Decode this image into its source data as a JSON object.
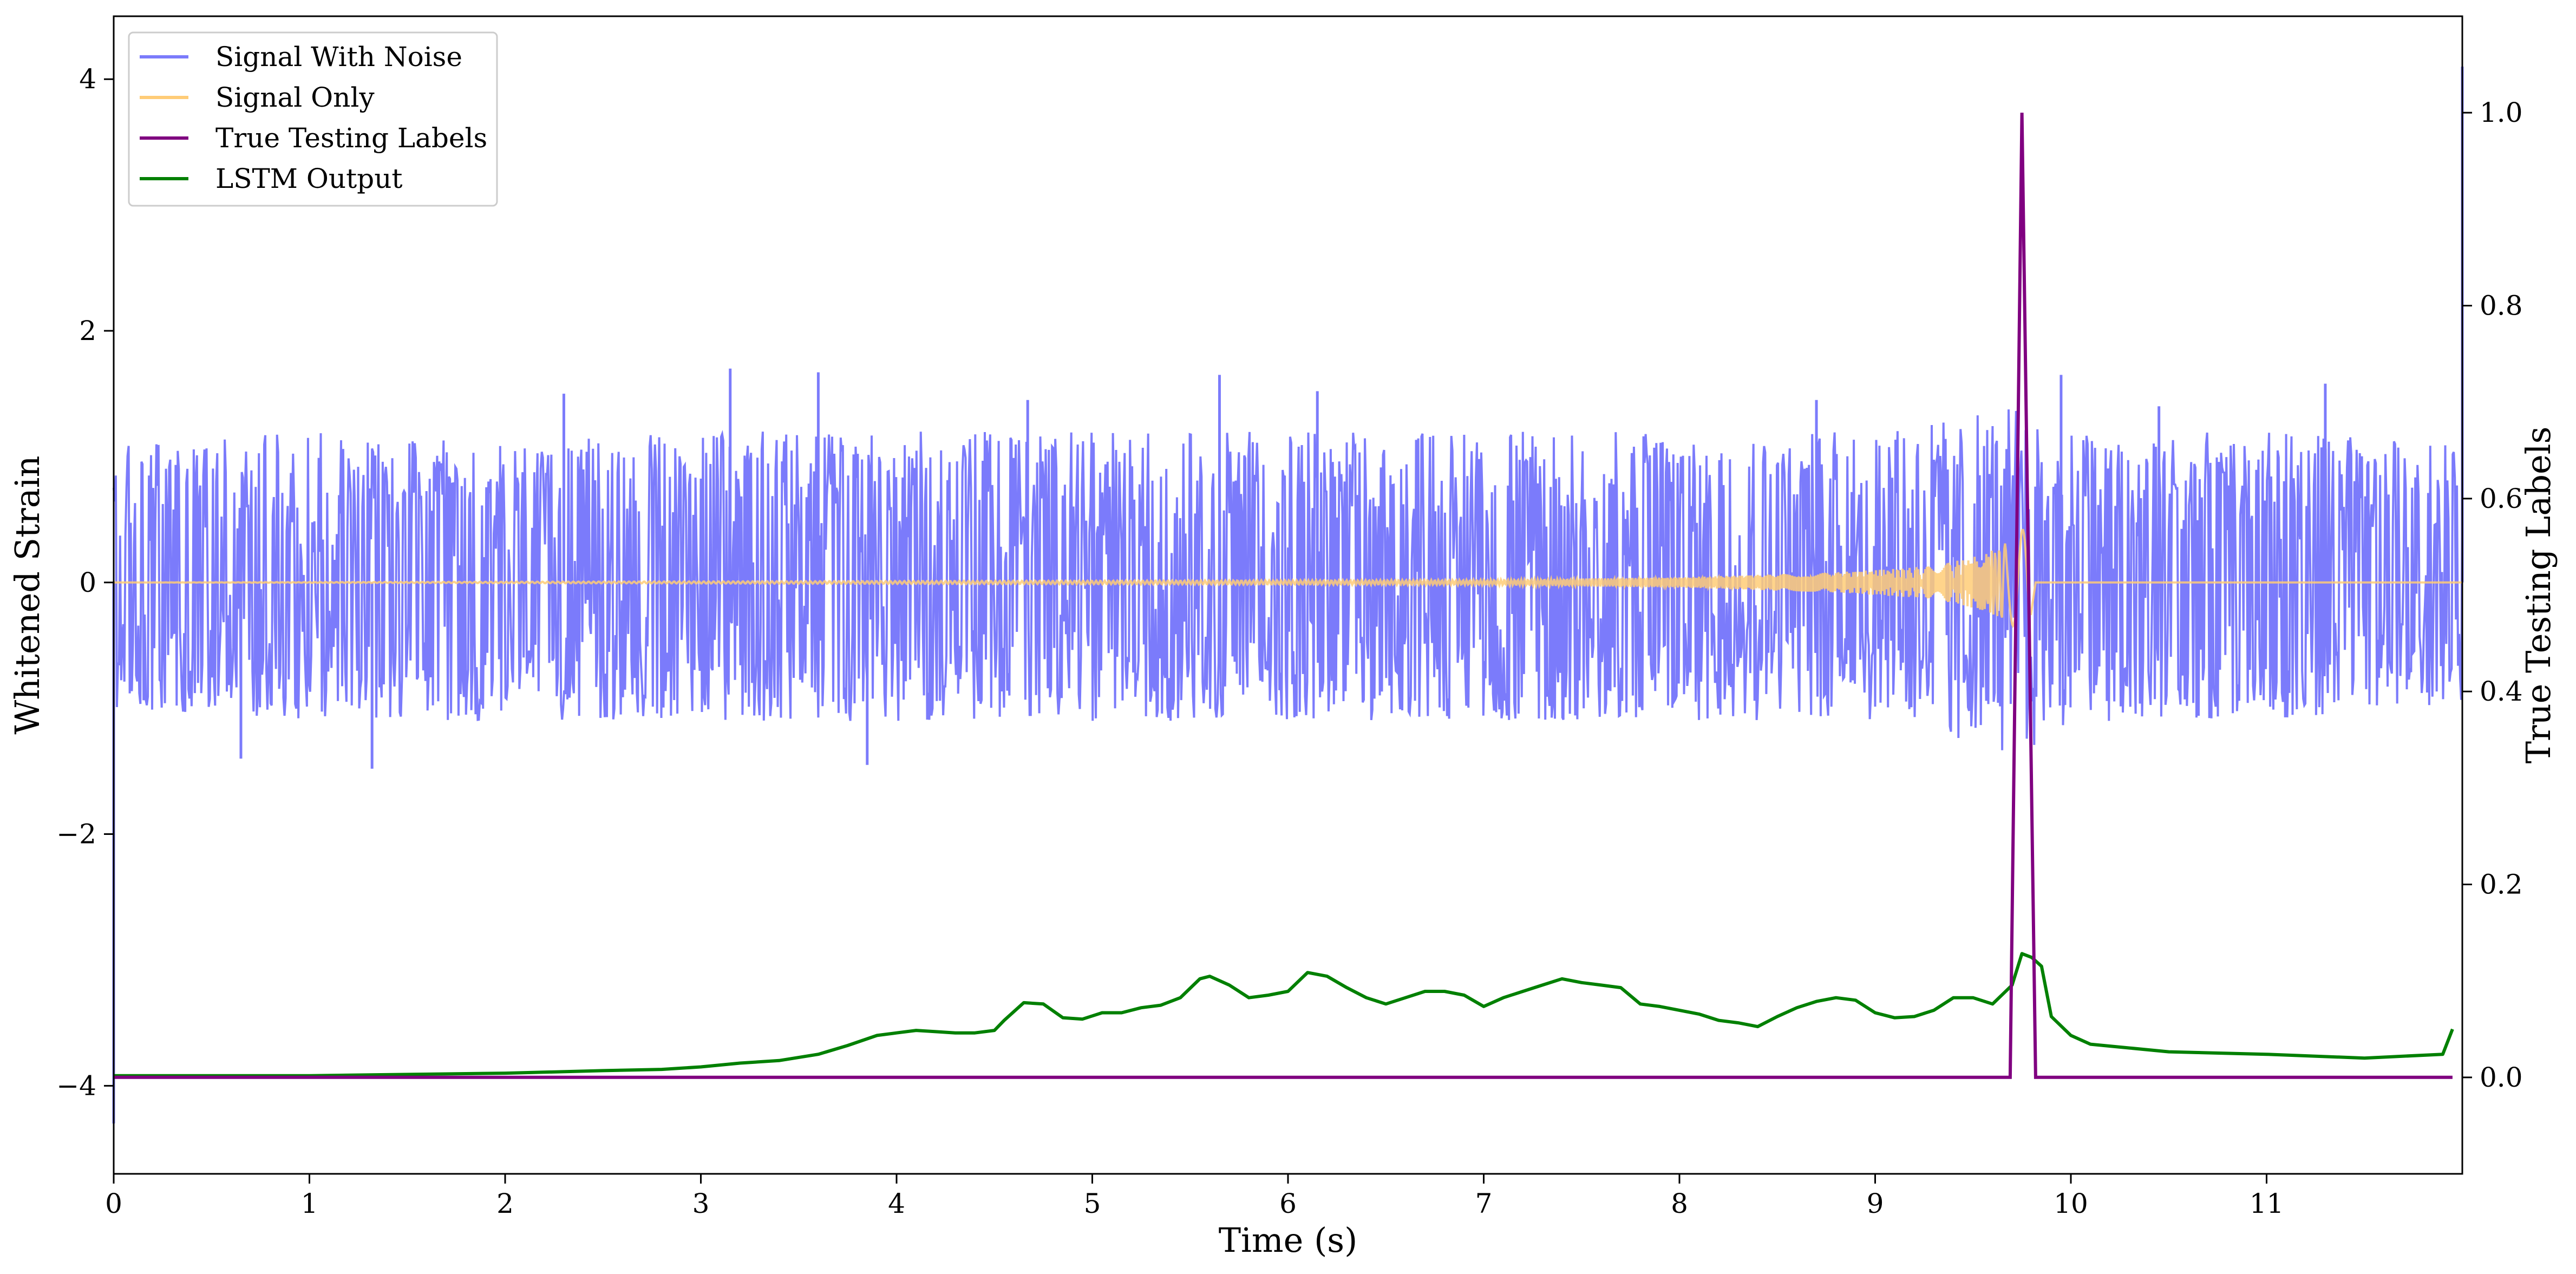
{
  "chart_data": {
    "type": "line",
    "title": "",
    "xlabel": "Time (s)",
    "ylabel": "Whitened Strain",
    "y2label": "True Testing Labels",
    "xlim": [
      0,
      12
    ],
    "ylim": [
      -4.7,
      4.5
    ],
    "y2lim": [
      -0.1,
      1.1
    ],
    "xticks": [
      0,
      1,
      2,
      3,
      4,
      5,
      6,
      7,
      8,
      9,
      10,
      11
    ],
    "xtick_labels": [
      "0",
      "1",
      "2",
      "3",
      "4",
      "5",
      "6",
      "7",
      "8",
      "9",
      "10",
      "11"
    ],
    "yticks": [
      -4,
      -2,
      0,
      2,
      4
    ],
    "ytick_labels": [
      "−4",
      "−2",
      "0",
      "2",
      "4"
    ],
    "y2ticks": [
      0.0,
      0.2,
      0.4,
      0.6,
      0.8,
      1.0
    ],
    "y2tick_labels": [
      "0.0",
      "0.2",
      "0.4",
      "0.6",
      "0.8",
      "1.0"
    ],
    "grid": false,
    "legend_position": "top-left",
    "series": [
      {
        "name": "Signal With Noise",
        "axis": "left",
        "color": "#7b7bfb",
        "envelope": {
          "x": [
            0,
            1,
            2,
            3,
            4,
            5,
            6,
            7,
            8,
            9,
            9.75,
            10,
            11,
            12
          ],
          "upper": [
            1.1,
            1.2,
            1.1,
            1.2,
            1.2,
            1.2,
            1.2,
            1.2,
            1.2,
            1.2,
            1.4,
            1.2,
            1.2,
            1.1
          ],
          "lower": [
            -1.0,
            -1.1,
            -1.1,
            -1.1,
            -1.1,
            -1.1,
            -1.1,
            -1.1,
            -1.1,
            -1.1,
            -1.4,
            -1.1,
            -1.1,
            -1.0
          ]
        },
        "spikes": [
          {
            "x": 0.0,
            "y": -4.3
          },
          {
            "x": 0.65,
            "y": -1.4
          },
          {
            "x": 1.32,
            "y": -1.48
          },
          {
            "x": 2.3,
            "y": 1.5
          },
          {
            "x": 3.15,
            "y": 1.7
          },
          {
            "x": 3.6,
            "y": 1.67
          },
          {
            "x": 3.85,
            "y": -1.45
          },
          {
            "x": 4.67,
            "y": 1.45
          },
          {
            "x": 5.65,
            "y": 1.65
          },
          {
            "x": 6.15,
            "y": 1.52
          },
          {
            "x": 8.7,
            "y": 1.45
          },
          {
            "x": 9.95,
            "y": 1.65
          },
          {
            "x": 10.45,
            "y": 1.4
          },
          {
            "x": 11.3,
            "y": 1.58
          },
          {
            "x": 12.0,
            "y": 4.1
          }
        ]
      },
      {
        "name": "Signal Only",
        "axis": "left",
        "color": "#ffcc77",
        "description_points": {
          "x": [
            0,
            7.0,
            8.0,
            8.8,
            9.3,
            9.55,
            9.7,
            9.78,
            9.82,
            12
          ],
          "amplitude": [
            0,
            0.02,
            0.04,
            0.08,
            0.13,
            0.22,
            0.34,
            0.46,
            0,
            0
          ]
        }
      },
      {
        "name": "True Testing Labels",
        "axis": "right",
        "color": "#800080",
        "x": [
          0,
          9.69,
          9.75,
          9.82,
          11.95
        ],
        "values": [
          0,
          0,
          1.0,
          0,
          0
        ]
      },
      {
        "name": "LSTM Output",
        "axis": "left",
        "color": "#008000",
        "x": [
          0,
          0.5,
          1.0,
          1.5,
          2.0,
          2.5,
          2.8,
          3.0,
          3.2,
          3.4,
          3.6,
          3.75,
          3.9,
          4.0,
          4.1,
          4.2,
          4.3,
          4.4,
          4.5,
          4.55,
          4.65,
          4.75,
          4.85,
          4.95,
          5.05,
          5.15,
          5.25,
          5.35,
          5.45,
          5.55,
          5.6,
          5.7,
          5.8,
          5.9,
          6.0,
          6.1,
          6.2,
          6.3,
          6.4,
          6.5,
          6.6,
          6.7,
          6.8,
          6.9,
          7.0,
          7.1,
          7.2,
          7.3,
          7.4,
          7.5,
          7.6,
          7.7,
          7.8,
          7.9,
          8.0,
          8.1,
          8.2,
          8.3,
          8.4,
          8.5,
          8.6,
          8.7,
          8.8,
          8.9,
          9.0,
          9.1,
          9.2,
          9.3,
          9.4,
          9.5,
          9.6,
          9.7,
          9.75,
          9.8,
          9.85,
          9.9,
          10.0,
          10.1,
          10.3,
          10.5,
          11.0,
          11.5,
          11.9,
          11.95
        ],
        "values": [
          -3.92,
          -3.92,
          -3.92,
          -3.91,
          -3.9,
          -3.88,
          -3.87,
          -3.85,
          -3.82,
          -3.8,
          -3.75,
          -3.68,
          -3.6,
          -3.58,
          -3.56,
          -3.57,
          -3.58,
          -3.58,
          -3.56,
          -3.48,
          -3.34,
          -3.35,
          -3.46,
          -3.47,
          -3.42,
          -3.42,
          -3.38,
          -3.36,
          -3.3,
          -3.15,
          -3.13,
          -3.2,
          -3.3,
          -3.28,
          -3.25,
          -3.1,
          -3.13,
          -3.22,
          -3.3,
          -3.35,
          -3.3,
          -3.25,
          -3.25,
          -3.28,
          -3.37,
          -3.3,
          -3.25,
          -3.2,
          -3.15,
          -3.18,
          -3.2,
          -3.22,
          -3.35,
          -3.37,
          -3.4,
          -3.43,
          -3.48,
          -3.5,
          -3.53,
          -3.45,
          -3.38,
          -3.33,
          -3.3,
          -3.32,
          -3.42,
          -3.46,
          -3.45,
          -3.4,
          -3.3,
          -3.3,
          -3.35,
          -3.2,
          -2.95,
          -2.98,
          -3.05,
          -3.45,
          -3.6,
          -3.67,
          -3.7,
          -3.73,
          -3.75,
          -3.78,
          -3.75,
          -3.55
        ]
      }
    ]
  }
}
